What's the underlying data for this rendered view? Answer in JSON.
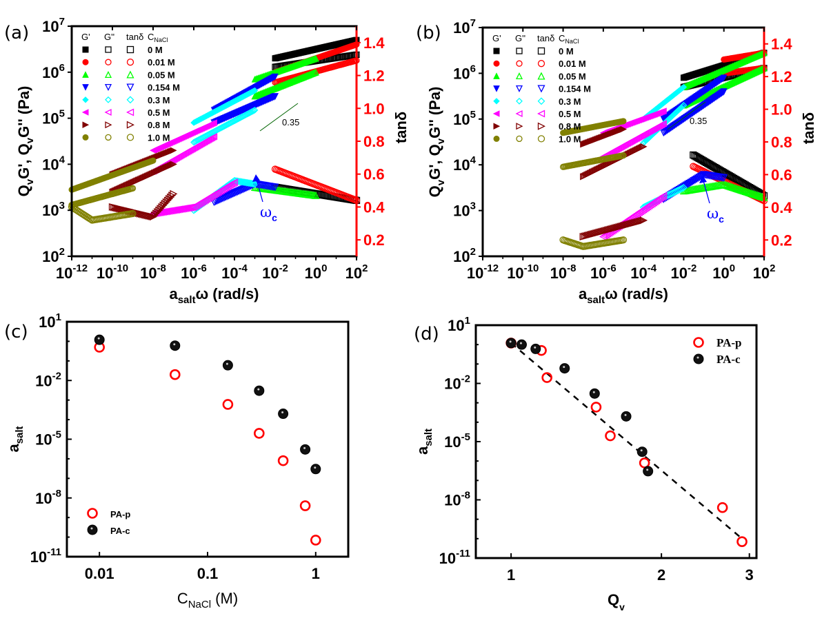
{
  "figure": {
    "panels": [
      "(a)",
      "(b)",
      "(c)",
      "(d)"
    ]
  },
  "chart_data": [
    {
      "panel": "(a)",
      "type": "scatter",
      "xscale": "log",
      "xlabel": "a_salt ω (rad/s)",
      "ylabel": "QvG', QvG'' (Pa)",
      "y2label": "tanδ",
      "xlim": [
        1e-12,
        100.0
      ],
      "ylim": [
        100.0,
        10000000.0
      ],
      "y2lim": [
        0.1,
        1.5
      ],
      "xticks": [
        "10^-12",
        "10^-10",
        "10^-8",
        "10^-6",
        "10^-4",
        "10^-2",
        "10^0",
        "10^2"
      ],
      "yticks": [
        "10^2",
        "10^3",
        "10^4",
        "10^5",
        "10^6",
        "10^7"
      ],
      "y2ticks": [
        "0.2",
        "0.4",
        "0.6",
        "0.8",
        "1.0",
        "1.2",
        "1.4"
      ],
      "legend_headers": [
        "G'",
        "G''",
        "tanδ",
        "C_NaCl"
      ],
      "legend_position": "top-left",
      "annotations": [
        {
          "text": "0.35",
          "kind": "slope"
        },
        {
          "text": "ω_c",
          "kind": "arrow"
        }
      ],
      "series": [
        {
          "name": "0 M",
          "color": "#000000",
          "marker": "square",
          "Gp": [
            [
              0.01,
              2000000.0
            ],
            [
              100.0,
              5000000.0
            ]
          ],
          "Gpp": [
            [
              0.01,
              1300000.0
            ],
            [
              100.0,
              2400000.0
            ]
          ],
          "tand": [
            [
              0.01,
              0.52
            ],
            [
              100.0,
              0.44
            ]
          ]
        },
        {
          "name": "0.01 M",
          "color": "#ff0000",
          "marker": "circle",
          "Gp": [
            [
              0.01,
              1000000.0
            ],
            [
              100.0,
              4000000.0
            ]
          ],
          "Gpp": [
            [
              0.01,
              600000.0
            ],
            [
              100.0,
              1800000.0
            ]
          ],
          "tand": [
            [
              0.01,
              0.63
            ],
            [
              100.0,
              0.44
            ]
          ]
        },
        {
          "name": "0.05 M",
          "color": "#00ff00",
          "marker": "triangle-up",
          "Gp": [
            [
              0.001,
              700000.0
            ],
            [
              1.0,
              2000000.0
            ]
          ],
          "Gpp": [
            [
              0.001,
              300000.0
            ],
            [
              1.0,
              1000000.0
            ]
          ],
          "tand": [
            [
              0.001,
              0.52
            ],
            [
              1.0,
              0.47
            ]
          ]
        },
        {
          "name": "0.154 M",
          "color": "#0000ff",
          "marker": "triangle-down",
          "Gp": [
            [
              1e-05,
              150000.0
            ],
            [
              0.01,
              800000.0
            ]
          ],
          "Gpp": [
            [
              1e-05,
              80000.0
            ],
            [
              0.01,
              300000.0
            ]
          ],
          "tand": [
            [
              1e-05,
              0.43
            ],
            [
              0.001,
              0.54
            ],
            [
              0.01,
              0.52
            ]
          ]
        },
        {
          "name": "0.3 M",
          "color": "#00ffff",
          "marker": "diamond",
          "Gp": [
            [
              1e-06,
              80000.0
            ],
            [
              0.001,
              400000.0
            ]
          ],
          "Gpp": [
            [
              1e-06,
              30000.0
            ],
            [
              0.001,
              150000.0
            ]
          ],
          "tand": [
            [
              1e-06,
              0.38
            ],
            [
              0.0001,
              0.56
            ],
            [
              0.001,
              0.54
            ]
          ]
        },
        {
          "name": "0.5 M",
          "color": "#ff00ff",
          "marker": "triangle-left",
          "Gp": [
            [
              1e-08,
              20000.0
            ],
            [
              1e-05,
              80000.0
            ]
          ],
          "Gpp": [
            [
              1e-08,
              7000.0
            ],
            [
              1e-05,
              40000.0
            ]
          ],
          "tand": [
            [
              1e-08,
              0.36
            ],
            [
              1e-06,
              0.4
            ],
            [
              0.0001,
              0.55
            ]
          ]
        },
        {
          "name": "0.8 M",
          "color": "#800000",
          "marker": "triangle-right",
          "Gp": [
            [
              1e-10,
              6000.0
            ],
            [
              1e-07,
              20000.0
            ]
          ],
          "Gpp": [
            [
              1e-10,
              2500.0
            ],
            [
              1e-07,
              10000.0
            ]
          ],
          "tand": [
            [
              1e-10,
              0.4
            ],
            [
              1e-08,
              0.34
            ],
            [
              1e-07,
              0.48
            ]
          ]
        },
        {
          "name": "1.0 M",
          "color": "#808000",
          "marker": "circle",
          "Gp": [
            [
              1e-12,
              2800.0
            ],
            [
              1e-08,
              12000.0
            ]
          ],
          "Gpp": [
            [
              1e-12,
              1300.0
            ],
            [
              1e-09,
              3000.0
            ]
          ],
          "tand": [
            [
              1e-12,
              0.4
            ],
            [
              1e-11,
              0.32
            ],
            [
              1e-09,
              0.36
            ]
          ]
        }
      ]
    },
    {
      "panel": "(b)",
      "type": "scatter",
      "xscale": "log",
      "xlabel": "a_salt ω (rad/s)",
      "ylabel": "QvG', QvG'' (Pa)",
      "y2label": "tanδ",
      "xlim": [
        1e-12,
        100.0
      ],
      "ylim": [
        100.0,
        10000000.0
      ],
      "y2lim": [
        0.1,
        1.5
      ],
      "xticks": [
        "10^-12",
        "10^-10",
        "10^-8",
        "10^-6",
        "10^-4",
        "10^-2",
        "10^0",
        "10^2"
      ],
      "yticks": [
        "10^2",
        "10^3",
        "10^4",
        "10^5",
        "10^6",
        "10^7"
      ],
      "y2ticks": [
        "0.2",
        "0.4",
        "0.6",
        "0.8",
        "1.0",
        "1.2",
        "1.4"
      ],
      "legend_headers": [
        "G'",
        "G''",
        "tanδ",
        "C_NaCl"
      ],
      "legend_position": "top-left",
      "annotations": [
        {
          "text": "0.35",
          "kind": "slope"
        },
        {
          "text": "ω_c",
          "kind": "arrow"
        }
      ],
      "series": [
        {
          "name": "0 M",
          "color": "#000000",
          "marker": "square",
          "Gp": [
            [
              0.01,
              800000.0
            ],
            [
              100.0,
              2800000.0
            ]
          ],
          "Gpp": [
            [
              0.01,
              500000.0
            ],
            [
              100.0,
              1300000.0
            ]
          ],
          "tand": [
            [
              0.03,
              0.72
            ],
            [
              100.0,
              0.47
            ]
          ]
        },
        {
          "name": "0.01 M",
          "color": "#ff0000",
          "marker": "circle",
          "Gp": [
            [
              1.0,
              2000000.0
            ],
            [
              100.0,
              2800000.0
            ]
          ],
          "Gpp": [
            [
              1.0,
              1000000.0
            ],
            [
              100.0,
              1300000.0
            ]
          ],
          "tand": [
            [
              0.03,
              0.65
            ],
            [
              100.0,
              0.44
            ]
          ]
        },
        {
          "name": "0.05 M",
          "color": "#00ff00",
          "marker": "triangle-up",
          "Gp": [
            [
              0.01,
              500000.0
            ],
            [
              100.0,
              2800000.0
            ]
          ],
          "Gpp": [
            [
              0.01,
              200000.0
            ],
            [
              100.0,
              1300000.0
            ]
          ],
          "tand": [
            [
              0.01,
              0.5
            ],
            [
              1.0,
              0.54
            ],
            [
              100.0,
              0.46
            ]
          ]
        },
        {
          "name": "0.154 M",
          "color": "#0000ff",
          "marker": "triangle-down",
          "Gp": [
            [
              0.001,
              100000.0
            ],
            [
              1.0,
              800000.0
            ]
          ],
          "Gpp": [
            [
              0.001,
              50000.0
            ],
            [
              1.0,
              400000.0
            ]
          ],
          "tand": [
            [
              0.001,
              0.45
            ],
            [
              0.1,
              0.6
            ],
            [
              1.0,
              0.58
            ]
          ]
        },
        {
          "name": "0.3 M",
          "color": "#00ffff",
          "marker": "diamond",
          "Gp": [
            [
              0.0001,
              100000.0
            ],
            [
              0.01,
              500000.0
            ]
          ],
          "Gpp": [
            [
              0.0001,
              30000.0
            ],
            [
              0.01,
              200000.0
            ]
          ],
          "tand": [
            [
              0.0001,
              0.4
            ],
            [
              0.01,
              0.52
            ]
          ]
        },
        {
          "name": "0.5 M",
          "color": "#ff00ff",
          "marker": "triangle-left",
          "Gp": [
            [
              1e-06,
              50000.0
            ],
            [
              0.001,
              150000.0
            ]
          ],
          "Gpp": [
            [
              1e-06,
              15000.0
            ],
            [
              0.001,
              80000.0
            ]
          ],
          "tand": [
            [
              1e-06,
              0.22
            ],
            [
              0.001,
              0.47
            ]
          ]
        },
        {
          "name": "0.8 M",
          "color": "#800000",
          "marker": "triangle-right",
          "Gp": [
            [
              1e-07,
              28000.0
            ],
            [
              1e-05,
              60000.0
            ]
          ],
          "Gpp": [
            [
              1e-07,
              5500.0
            ],
            [
              0.0001,
              25000.0
            ]
          ],
          "tand": [
            [
              1e-07,
              0.22
            ],
            [
              0.0001,
              0.32
            ]
          ]
        },
        {
          "name": "1.0 M",
          "color": "#808000",
          "marker": "circle",
          "Gp": [
            [
              1e-08,
              50000.0
            ],
            [
              1e-05,
              90000.0
            ]
          ],
          "Gpp": [
            [
              1e-08,
              9000.0
            ],
            [
              1e-05,
              16000.0
            ]
          ],
          "tand": [
            [
              1e-08,
              0.2
            ],
            [
              1e-07,
              0.16
            ],
            [
              1e-05,
              0.2
            ]
          ]
        }
      ]
    },
    {
      "panel": "(c)",
      "type": "scatter",
      "xscale": "log",
      "yscale": "log",
      "xlabel": "C_NaCl (M)",
      "ylabel": "a_salt",
      "xlim": [
        0.005,
        2
      ],
      "ylim": [
        1e-11,
        10
      ],
      "xticks": [
        "0.01",
        "0.1",
        "1"
      ],
      "yticks": [
        "10^1",
        "10^-2",
        "10^-5",
        "10^-8",
        "10^-11"
      ],
      "legend_position": "bottom-left",
      "x": [
        0.01,
        0.05,
        0.154,
        0.3,
        0.5,
        0.8,
        1.0
      ],
      "series": [
        {
          "name": "PA-p",
          "color": "#ff0000",
          "marker": "open-circle",
          "values": [
            0.5,
            0.02,
            0.0006,
            2e-05,
            8e-07,
            4e-09,
            7e-11
          ]
        },
        {
          "name": "PA-c",
          "color": "#000000",
          "marker": "filled-sphere",
          "values": [
            1.2,
            0.6,
            0.06,
            0.003,
            0.0002,
            3e-06,
            3e-07
          ]
        }
      ]
    },
    {
      "panel": "(d)",
      "type": "scatter",
      "xscale": "log",
      "yscale": "log",
      "xlabel": "Q_v",
      "ylabel": "a_salt",
      "xlim": [
        0.85,
        3.1
      ],
      "ylim": [
        1e-11,
        10
      ],
      "xticks": [
        "1",
        "2",
        "3"
      ],
      "yticks": [
        "10^1",
        "10^-2",
        "10^-5",
        "10^-8",
        "10^-11"
      ],
      "legend_position": "top-right",
      "fit_line": {
        "style": "dashed",
        "from": [
          1.0,
          1.2
        ],
        "to": [
          2.9,
          1e-10
        ]
      },
      "series": [
        {
          "name": "PA-p",
          "color": "#ff0000",
          "marker": "open-circle",
          "x": [
            1.0,
            1.15,
            1.18,
            1.48,
            1.58,
            1.85,
            2.65,
            2.9
          ],
          "values": [
            1.2,
            0.5,
            0.02,
            0.0006,
            2e-05,
            8e-07,
            4e-09,
            7e-11
          ]
        },
        {
          "name": "PA-c",
          "color": "#000000",
          "marker": "filled-sphere",
          "x": [
            1.0,
            1.05,
            1.12,
            1.28,
            1.47,
            1.7,
            1.83,
            1.88
          ],
          "values": [
            1.2,
            1.0,
            0.6,
            0.06,
            0.003,
            0.0002,
            3e-06,
            3e-07
          ]
        }
      ]
    }
  ]
}
